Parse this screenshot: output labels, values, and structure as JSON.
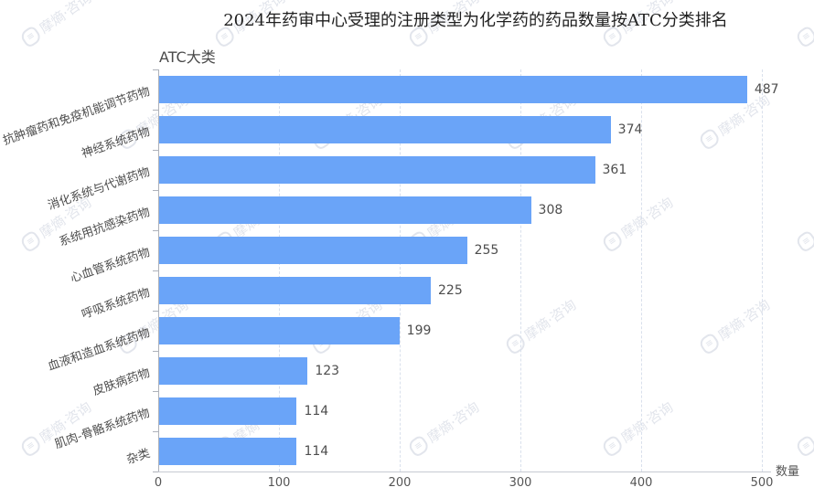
{
  "title": "2024年药审中心受理的注册类型为化学药的药品数量按ATC分类排名",
  "watermark": {
    "text": "摩熵·咨询",
    "logo_glyph": "≡"
  },
  "chart_data": {
    "type": "bar",
    "orientation": "horizontal",
    "title": "2024年药审中心受理的注册类型为化学药的药品数量按ATC分类排名",
    "ylabel": "ATC大类",
    "xlabel": "数量",
    "categories": [
      "抗肿瘤药和免疫机能调节药物",
      "神经系统药物",
      "消化系统与代谢药物",
      "系统用抗感染药物",
      "心血管系统药物",
      "呼吸系统药物",
      "血液和造血系统药物",
      "皮肤病药物",
      "肌肉-骨骼系统药物",
      "杂类"
    ],
    "values": [
      487,
      374,
      361,
      308,
      255,
      225,
      199,
      123,
      114,
      114
    ],
    "xlim": [
      0,
      500
    ],
    "xticks": [
      0,
      100,
      200,
      300,
      400,
      500
    ],
    "grid": "vertical-dashed",
    "legend": "none",
    "bar_color": "#6AA4F8",
    "sorted": "descending"
  }
}
